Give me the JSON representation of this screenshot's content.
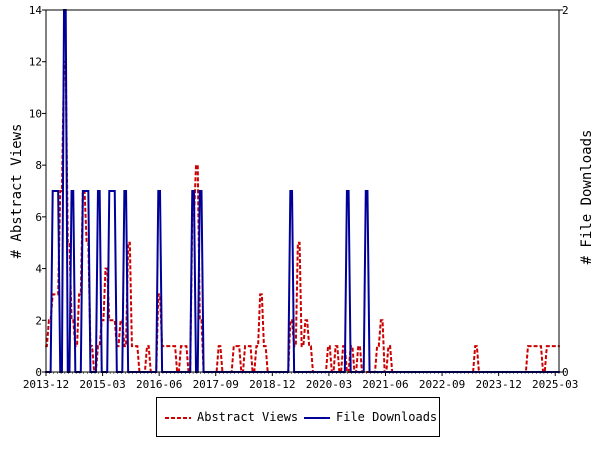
{
  "chart_data": {
    "type": "line",
    "title": "",
    "x_tick_labels": [
      "2013-12",
      "2015-03",
      "2016-06",
      "2017-09",
      "2018-12",
      "2020-03",
      "2021-06",
      "2022-09",
      "2023-12",
      "2025-03"
    ],
    "y_left": {
      "label": "# Abstract Views",
      "ylim": [
        0,
        14
      ],
      "ticks": [
        0,
        2,
        4,
        6,
        8,
        10,
        12,
        14
      ]
    },
    "y_right": {
      "label": "# File Downloads",
      "ylim": [
        0,
        2
      ],
      "ticks": [
        0,
        2
      ]
    },
    "grid": false,
    "legend_position": "bottom",
    "month_index_range": [
      0,
      136
    ],
    "series": [
      {
        "name": "Abstract Views",
        "axis": "left",
        "color": "#cc0000",
        "dash": true,
        "points": [
          [
            0,
            1
          ],
          [
            1,
            2
          ],
          [
            2,
            3
          ],
          [
            3,
            3
          ],
          [
            4,
            7
          ],
          [
            5,
            12
          ],
          [
            6,
            5
          ],
          [
            7,
            2
          ],
          [
            8,
            1
          ],
          [
            9,
            3
          ],
          [
            10,
            7
          ],
          [
            11,
            5
          ],
          [
            12,
            1
          ],
          [
            13,
            0
          ],
          [
            14,
            1
          ],
          [
            15,
            2
          ],
          [
            16,
            4
          ],
          [
            17,
            2
          ],
          [
            18,
            2
          ],
          [
            19,
            1
          ],
          [
            20,
            2
          ],
          [
            21,
            1
          ],
          [
            22,
            5
          ],
          [
            23,
            1
          ],
          [
            24,
            1
          ],
          [
            25,
            0
          ],
          [
            26,
            0
          ],
          [
            27,
            1
          ],
          [
            28,
            0
          ],
          [
            29,
            0
          ],
          [
            30,
            3
          ],
          [
            31,
            1
          ],
          [
            32,
            1
          ],
          [
            33,
            1
          ],
          [
            34,
            1
          ],
          [
            35,
            0
          ],
          [
            36,
            1
          ],
          [
            37,
            1
          ],
          [
            38,
            0
          ],
          [
            39,
            6
          ],
          [
            40,
            8
          ],
          [
            41,
            2
          ],
          [
            42,
            0
          ],
          [
            43,
            0
          ],
          [
            44,
            0
          ],
          [
            45,
            0
          ],
          [
            46,
            1
          ],
          [
            47,
            0
          ],
          [
            48,
            0
          ],
          [
            49,
            0
          ],
          [
            50,
            1
          ],
          [
            51,
            1
          ],
          [
            52,
            0
          ],
          [
            53,
            1
          ],
          [
            54,
            1
          ],
          [
            55,
            0
          ],
          [
            56,
            1
          ],
          [
            57,
            3
          ],
          [
            58,
            1
          ],
          [
            59,
            0
          ],
          [
            60,
            0
          ],
          [
            61,
            0
          ],
          [
            62,
            0
          ],
          [
            63,
            0
          ],
          [
            64,
            0
          ],
          [
            65,
            2
          ],
          [
            66,
            1
          ],
          [
            67,
            5
          ],
          [
            68,
            1
          ],
          [
            69,
            2
          ],
          [
            70,
            1
          ],
          [
            71,
            0
          ],
          [
            72,
            0
          ],
          [
            73,
            0
          ],
          [
            74,
            0
          ],
          [
            75,
            1
          ],
          [
            76,
            0
          ],
          [
            77,
            1
          ],
          [
            78,
            0
          ],
          [
            79,
            1
          ],
          [
            80,
            0
          ],
          [
            81,
            1
          ],
          [
            82,
            0
          ],
          [
            83,
            1
          ],
          [
            84,
            0
          ],
          [
            85,
            0
          ],
          [
            86,
            0
          ],
          [
            87,
            0
          ],
          [
            88,
            1
          ],
          [
            89,
            2
          ],
          [
            90,
            0
          ],
          [
            91,
            1
          ],
          [
            92,
            0
          ],
          [
            93,
            0
          ],
          [
            94,
            0
          ],
          [
            95,
            0
          ],
          [
            96,
            0
          ],
          [
            97,
            0
          ],
          [
            98,
            0
          ],
          [
            99,
            0
          ],
          [
            100,
            0
          ],
          [
            101,
            0
          ],
          [
            102,
            0
          ],
          [
            103,
            0
          ],
          [
            104,
            0
          ],
          [
            105,
            0
          ],
          [
            106,
            0
          ],
          [
            107,
            0
          ],
          [
            108,
            0
          ],
          [
            109,
            0
          ],
          [
            110,
            0
          ],
          [
            111,
            0
          ],
          [
            112,
            0
          ],
          [
            113,
            0
          ],
          [
            114,
            1
          ],
          [
            115,
            0
          ],
          [
            116,
            0
          ],
          [
            117,
            0
          ],
          [
            118,
            0
          ],
          [
            119,
            0
          ],
          [
            120,
            0
          ],
          [
            121,
            0
          ],
          [
            122,
            0
          ],
          [
            123,
            0
          ],
          [
            124,
            0
          ],
          [
            125,
            0
          ],
          [
            126,
            0
          ],
          [
            127,
            0
          ],
          [
            128,
            1
          ],
          [
            129,
            1
          ],
          [
            130,
            1
          ],
          [
            131,
            1
          ],
          [
            132,
            0
          ],
          [
            133,
            1
          ],
          [
            134,
            1
          ],
          [
            135,
            1
          ],
          [
            136,
            1
          ]
        ]
      },
      {
        "name": "File Downloads",
        "axis": "right",
        "color": "#000099",
        "dash": false,
        "points": [
          [
            0,
            0
          ],
          [
            1,
            0
          ],
          [
            2,
            1
          ],
          [
            3,
            1
          ],
          [
            4,
            0
          ],
          [
            5,
            2
          ],
          [
            6,
            0
          ],
          [
            7,
            1
          ],
          [
            8,
            0
          ],
          [
            9,
            0
          ],
          [
            10,
            1
          ],
          [
            11,
            1
          ],
          [
            12,
            0
          ],
          [
            13,
            0
          ],
          [
            14,
            1
          ],
          [
            15,
            0
          ],
          [
            16,
            0
          ],
          [
            17,
            1
          ],
          [
            18,
            1
          ],
          [
            19,
            0
          ],
          [
            20,
            0
          ],
          [
            21,
            1
          ],
          [
            22,
            0
          ],
          [
            23,
            0
          ],
          [
            24,
            0
          ],
          [
            25,
            0
          ],
          [
            26,
            0
          ],
          [
            27,
            0
          ],
          [
            28,
            0
          ],
          [
            29,
            0
          ],
          [
            30,
            1
          ],
          [
            31,
            0
          ],
          [
            32,
            0
          ],
          [
            33,
            0
          ],
          [
            34,
            0
          ],
          [
            35,
            0
          ],
          [
            36,
            0
          ],
          [
            37,
            0
          ],
          [
            38,
            0
          ],
          [
            39,
            1
          ],
          [
            40,
            0
          ],
          [
            41,
            1
          ],
          [
            42,
            0
          ],
          [
            43,
            0
          ],
          [
            44,
            0
          ],
          [
            45,
            0
          ],
          [
            46,
            0
          ],
          [
            47,
            0
          ],
          [
            48,
            0
          ],
          [
            49,
            0
          ],
          [
            50,
            0
          ],
          [
            51,
            0
          ],
          [
            52,
            0
          ],
          [
            53,
            0
          ],
          [
            54,
            0
          ],
          [
            55,
            0
          ],
          [
            56,
            0
          ],
          [
            57,
            0
          ],
          [
            58,
            0
          ],
          [
            59,
            0
          ],
          [
            60,
            0
          ],
          [
            61,
            0
          ],
          [
            62,
            0
          ],
          [
            63,
            0
          ],
          [
            64,
            0
          ],
          [
            65,
            1
          ],
          [
            66,
            0
          ],
          [
            67,
            0
          ],
          [
            68,
            0
          ],
          [
            69,
            0
          ],
          [
            70,
            0
          ],
          [
            71,
            0
          ],
          [
            72,
            0
          ],
          [
            73,
            0
          ],
          [
            74,
            0
          ],
          [
            75,
            0
          ],
          [
            76,
            0
          ],
          [
            77,
            0
          ],
          [
            78,
            0
          ],
          [
            79,
            0
          ],
          [
            80,
            1
          ],
          [
            81,
            0
          ],
          [
            82,
            0
          ],
          [
            83,
            0
          ],
          [
            84,
            0
          ],
          [
            85,
            1
          ],
          [
            86,
            0
          ],
          [
            87,
            0
          ],
          [
            88,
            0
          ],
          [
            89,
            0
          ],
          [
            90,
            0
          ],
          [
            91,
            0
          ],
          [
            92,
            0
          ],
          [
            93,
            0
          ],
          [
            94,
            0
          ],
          [
            95,
            0
          ],
          [
            96,
            0
          ],
          [
            97,
            0
          ],
          [
            98,
            0
          ],
          [
            99,
            0
          ],
          [
            100,
            0
          ],
          [
            101,
            0
          ],
          [
            102,
            0
          ],
          [
            103,
            0
          ],
          [
            104,
            0
          ],
          [
            105,
            0
          ],
          [
            106,
            0
          ],
          [
            107,
            0
          ],
          [
            108,
            0
          ],
          [
            109,
            0
          ],
          [
            110,
            0
          ],
          [
            111,
            0
          ],
          [
            112,
            0
          ],
          [
            113,
            0
          ],
          [
            114,
            0
          ],
          [
            115,
            0
          ],
          [
            116,
            0
          ],
          [
            117,
            0
          ],
          [
            118,
            0
          ],
          [
            119,
            0
          ],
          [
            120,
            0
          ],
          [
            121,
            0
          ],
          [
            122,
            0
          ],
          [
            123,
            0
          ],
          [
            124,
            0
          ],
          [
            125,
            0
          ],
          [
            126,
            0
          ],
          [
            127,
            0
          ],
          [
            128,
            0
          ],
          [
            129,
            0
          ],
          [
            130,
            0
          ],
          [
            131,
            0
          ],
          [
            132,
            0
          ],
          [
            133,
            0
          ],
          [
            134,
            0
          ],
          [
            135,
            0
          ],
          [
            136,
            0
          ]
        ]
      }
    ]
  }
}
